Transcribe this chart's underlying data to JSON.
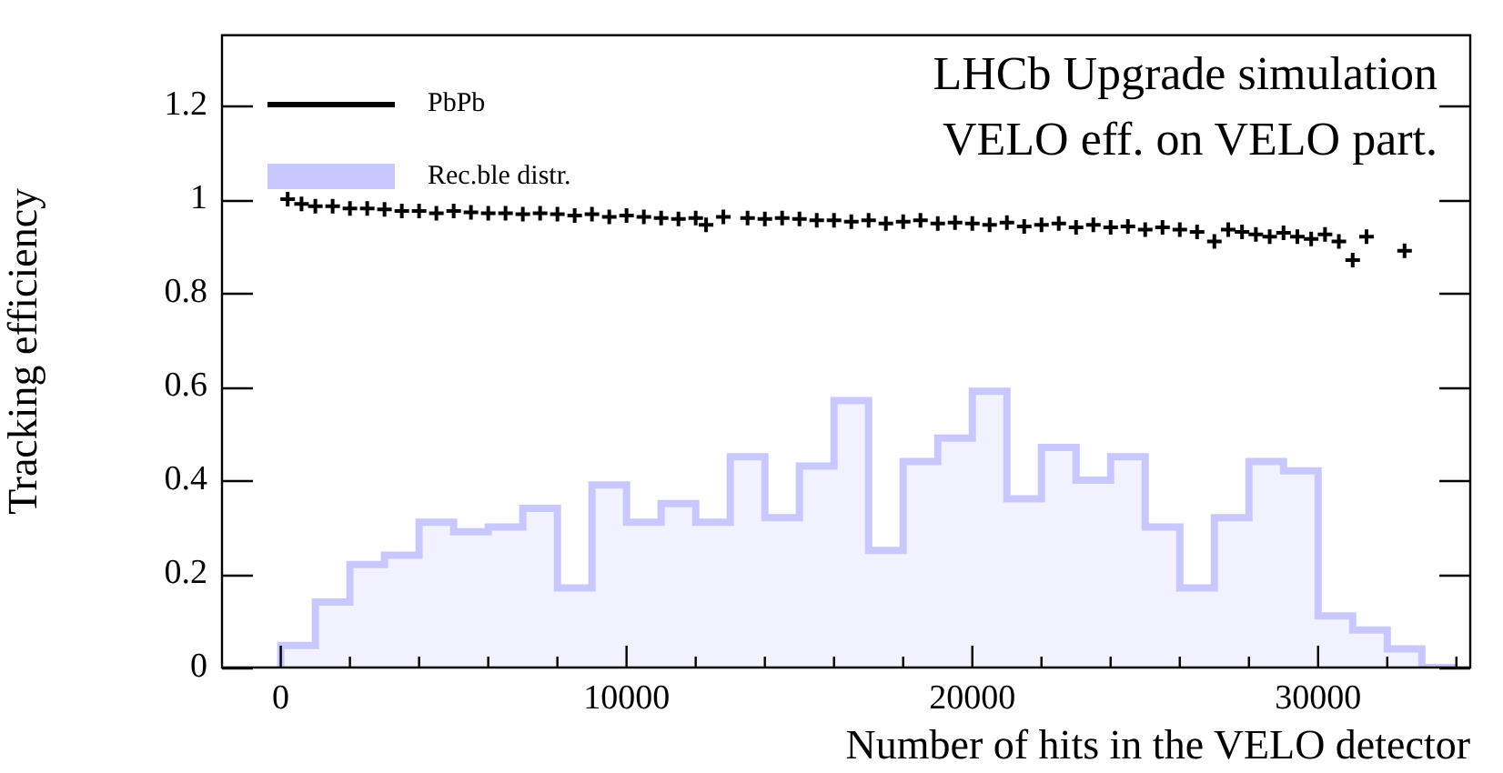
{
  "chart_data": {
    "type": "histogram",
    "annotations": [
      "LHCb Upgrade simulation",
      "VELO eff. on VELO part."
    ],
    "xlabel": "Number of hits in the VELO detector",
    "ylabel": "Tracking efficiency",
    "series": [
      {
        "name": "PbPb",
        "type": "scatter",
        "color": "#000000",
        "x": [
          200,
          600,
          1000,
          1500,
          2000,
          2500,
          3000,
          3500,
          4000,
          4500,
          5000,
          5500,
          6000,
          6500,
          7000,
          7500,
          8000,
          8500,
          9000,
          9500,
          10000,
          10500,
          11000,
          11500,
          12000,
          12300,
          12800,
          13500,
          14000,
          14500,
          15000,
          15500,
          16000,
          16500,
          17000,
          17500,
          18000,
          18500,
          19000,
          19500,
          20000,
          20500,
          21000,
          21500,
          22000,
          22500,
          23000,
          23500,
          24000,
          24500,
          25000,
          25500,
          26000,
          26500,
          27000,
          27400,
          27800,
          28200,
          28600,
          29000,
          29400,
          29800,
          30200,
          30600,
          31000,
          31400,
          32500
        ],
        "values": [
          1.0,
          0.99,
          0.985,
          0.985,
          0.98,
          0.98,
          0.978,
          0.975,
          0.975,
          0.97,
          0.975,
          0.972,
          0.97,
          0.97,
          0.968,
          0.97,
          0.968,
          0.965,
          0.968,
          0.962,
          0.965,
          0.962,
          0.96,
          0.958,
          0.96,
          0.945,
          0.962,
          0.96,
          0.958,
          0.96,
          0.958,
          0.955,
          0.955,
          0.952,
          0.955,
          0.948,
          0.952,
          0.955,
          0.948,
          0.95,
          0.948,
          0.945,
          0.95,
          0.942,
          0.945,
          0.948,
          0.94,
          0.945,
          0.94,
          0.942,
          0.935,
          0.94,
          0.935,
          0.93,
          0.91,
          0.935,
          0.93,
          0.925,
          0.92,
          0.928,
          0.92,
          0.915,
          0.925,
          0.91,
          0.87,
          0.92,
          0.89
        ]
      },
      {
        "name": "Rec.ble distr.",
        "color": "#c8c8ff",
        "bins": [
          0,
          1000,
          2000,
          3000,
          4000,
          5000,
          6000,
          7000,
          8000,
          9000,
          10000,
          11000,
          12000,
          13000,
          14000,
          15000,
          16000,
          17000,
          18000,
          19000,
          20000,
          21000,
          22000,
          23000,
          24000,
          25000,
          26000,
          27000,
          28000,
          29000,
          30000,
          31000,
          32000,
          33000,
          34000
        ],
        "values": [
          0.047,
          0.14,
          0.22,
          0.24,
          0.31,
          0.29,
          0.3,
          0.34,
          0.17,
          0.39,
          0.31,
          0.35,
          0.31,
          0.45,
          0.32,
          0.43,
          0.57,
          0.25,
          0.44,
          0.49,
          0.59,
          0.36,
          0.47,
          0.4,
          0.45,
          0.3,
          0.17,
          0.32,
          0.44,
          0.42,
          0.11,
          0.08,
          0.04,
          0
        ]
      }
    ],
    "xlim": [
      -1700,
      34400
    ],
    "xticks": [
      0,
      {
        "value": 2000,
        "label": null
      },
      {
        "value": 4000,
        "label": null
      },
      {
        "value": 6000,
        "label": null
      },
      {
        "value": 8000,
        "label": null
      },
      10000,
      {
        "value": 12000,
        "label": null
      },
      {
        "value": 14000,
        "label": null
      },
      {
        "value": 16000,
        "label": null
      },
      {
        "value": 18000,
        "label": null
      },
      20000,
      {
        "value": 22000,
        "label": null
      },
      {
        "value": 24000,
        "label": null
      },
      {
        "value": 26000,
        "label": null
      },
      {
        "value": 28000,
        "label": null
      },
      30000,
      {
        "value": 32000,
        "label": null
      },
      {
        "value": 34000,
        "label": null
      }
    ],
    "ylim": [
      0,
      1.35
    ],
    "yticks": [
      0,
      0.2,
      0.4,
      0.6,
      0.8,
      1,
      1.2
    ],
    "grid": false,
    "legend": "top left",
    "marker": "cross"
  }
}
